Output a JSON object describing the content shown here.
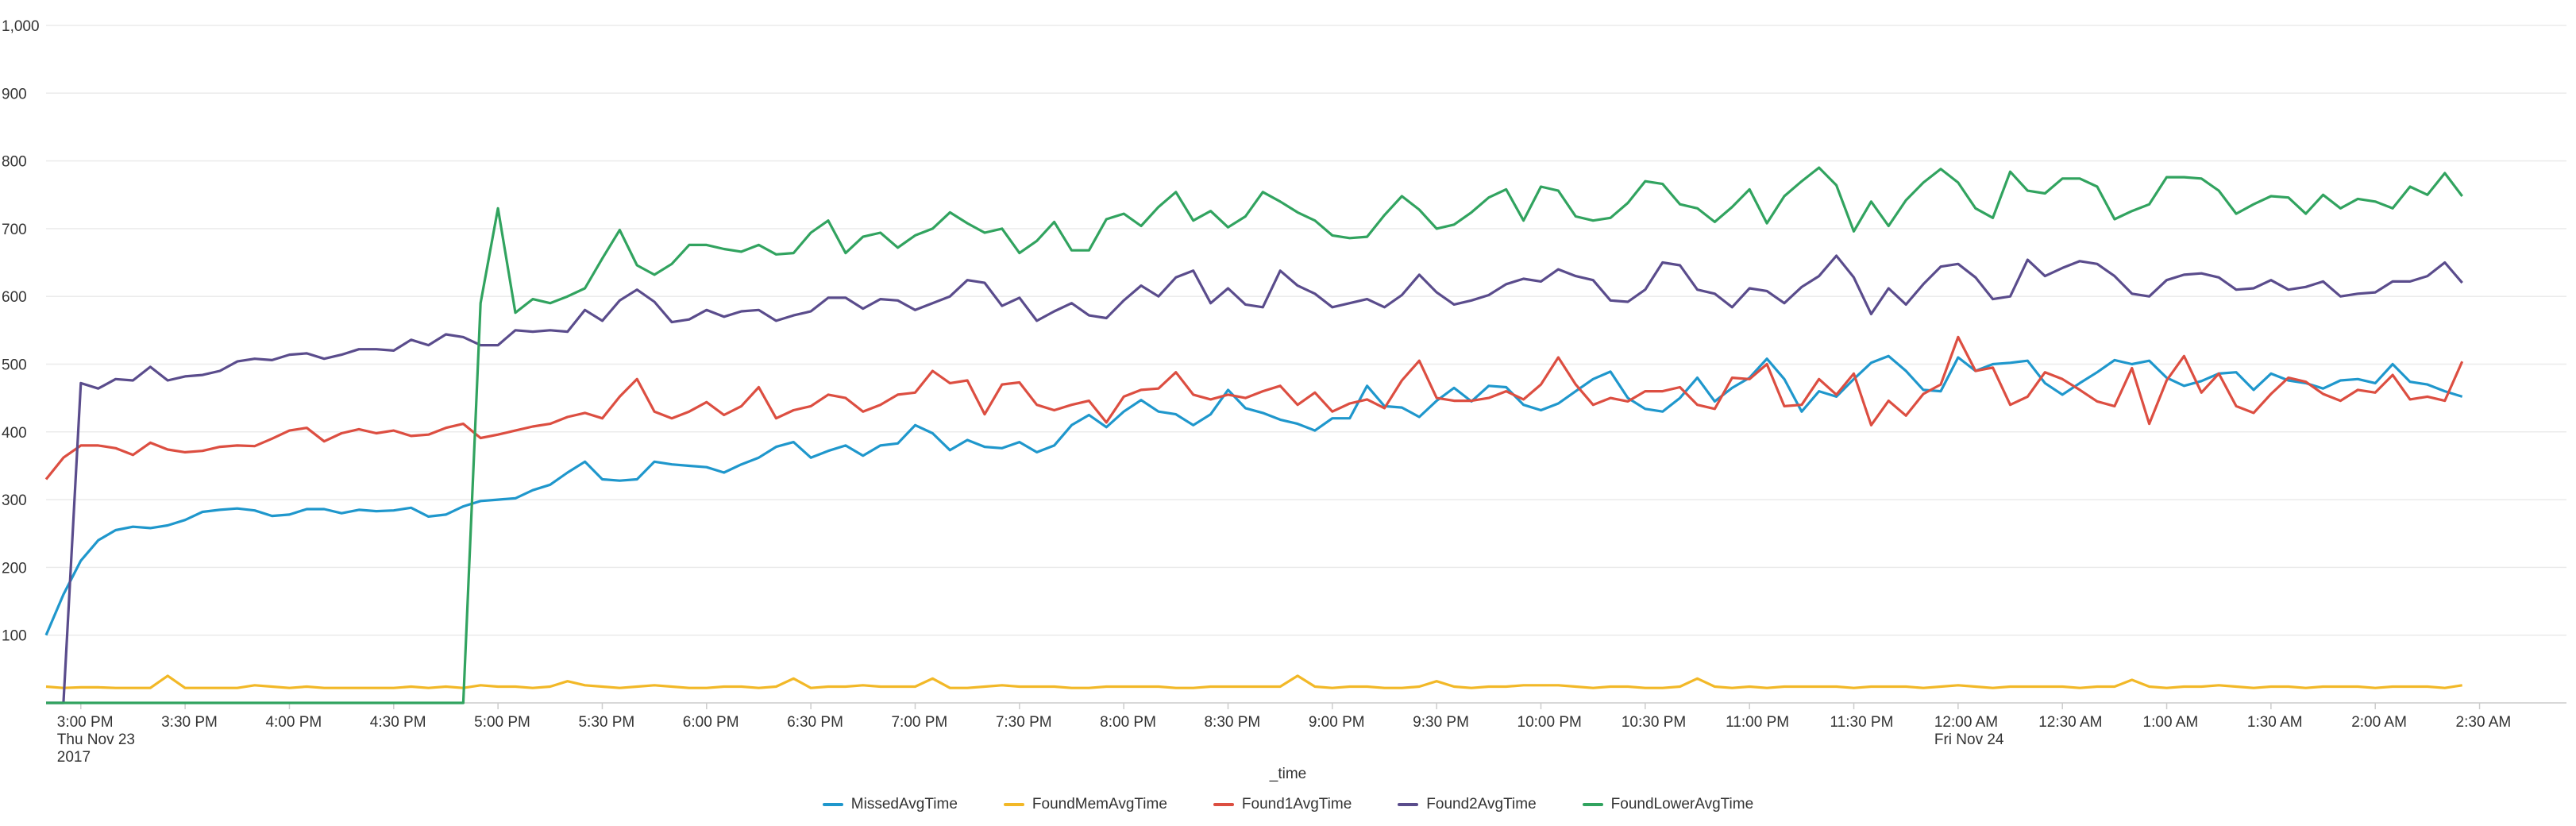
{
  "chart_data": {
    "type": "line",
    "title": "",
    "xlabel": "_time",
    "ylabel": "",
    "ylim": [
      0,
      1000
    ],
    "yticks": [
      "100",
      "200",
      "300",
      "400",
      "500",
      "600",
      "700",
      "800",
      "900",
      "1,000"
    ],
    "ytick_values": [
      100,
      200,
      300,
      400,
      500,
      600,
      700,
      800,
      900,
      1000
    ],
    "x_start": "2017-11-23 14:50",
    "x_end": "2017-11-24 02:55",
    "x_step_minutes": 5,
    "xticks": [
      {
        "time": "2017-11-23 15:00",
        "lines": [
          "3:00 PM",
          "Thu Nov 23",
          "2017"
        ]
      },
      {
        "time": "2017-11-23 15:30",
        "lines": [
          "3:30 PM"
        ]
      },
      {
        "time": "2017-11-23 16:00",
        "lines": [
          "4:00 PM"
        ]
      },
      {
        "time": "2017-11-23 16:30",
        "lines": [
          "4:30 PM"
        ]
      },
      {
        "time": "2017-11-23 17:00",
        "lines": [
          "5:00 PM"
        ]
      },
      {
        "time": "2017-11-23 17:30",
        "lines": [
          "5:30 PM"
        ]
      },
      {
        "time": "2017-11-23 18:00",
        "lines": [
          "6:00 PM"
        ]
      },
      {
        "time": "2017-11-23 18:30",
        "lines": [
          "6:30 PM"
        ]
      },
      {
        "time": "2017-11-23 19:00",
        "lines": [
          "7:00 PM"
        ]
      },
      {
        "time": "2017-11-23 19:30",
        "lines": [
          "7:30 PM"
        ]
      },
      {
        "time": "2017-11-23 20:00",
        "lines": [
          "8:00 PM"
        ]
      },
      {
        "time": "2017-11-23 20:30",
        "lines": [
          "8:30 PM"
        ]
      },
      {
        "time": "2017-11-23 21:00",
        "lines": [
          "9:00 PM"
        ]
      },
      {
        "time": "2017-11-23 21:30",
        "lines": [
          "9:30 PM"
        ]
      },
      {
        "time": "2017-11-23 22:00",
        "lines": [
          "10:00 PM"
        ]
      },
      {
        "time": "2017-11-23 22:30",
        "lines": [
          "10:30 PM"
        ]
      },
      {
        "time": "2017-11-23 23:00",
        "lines": [
          "11:00 PM"
        ]
      },
      {
        "time": "2017-11-23 23:30",
        "lines": [
          "11:30 PM"
        ]
      },
      {
        "time": "2017-11-24 00:00",
        "lines": [
          "12:00 AM",
          "Fri Nov 24"
        ]
      },
      {
        "time": "2017-11-24 00:30",
        "lines": [
          "12:30 AM"
        ]
      },
      {
        "time": "2017-11-24 01:00",
        "lines": [
          "1:00 AM"
        ]
      },
      {
        "time": "2017-11-24 01:30",
        "lines": [
          "1:30 AM"
        ]
      },
      {
        "time": "2017-11-24 02:00",
        "lines": [
          "2:00 AM"
        ]
      },
      {
        "time": "2017-11-24 02:30",
        "lines": [
          "2:30 AM"
        ]
      }
    ],
    "grid": "horizontal",
    "legend_position": "bottom",
    "series": [
      {
        "name": "MissedAvgTime",
        "color": "#1f97cc",
        "values": [
          100,
          160,
          210,
          240,
          255,
          260,
          258,
          262,
          270,
          282,
          285,
          287,
          284,
          276,
          278,
          286,
          286,
          280,
          285,
          283,
          284,
          288,
          275,
          278,
          290,
          298,
          300,
          302,
          314,
          322,
          340,
          356,
          330,
          328,
          330,
          356,
          352,
          350,
          348,
          340,
          352,
          362,
          378,
          385,
          362,
          372,
          380,
          365,
          380,
          383,
          410,
          398,
          373,
          388,
          378,
          376,
          385,
          370,
          380,
          410,
          425,
          407,
          430,
          447,
          430,
          426,
          410,
          426,
          462,
          435,
          428,
          418,
          412,
          402,
          420,
          420,
          468,
          438,
          436,
          422,
          446,
          465,
          445,
          468,
          466,
          440,
          432,
          442,
          460,
          478,
          489,
          450,
          434,
          430,
          450,
          480,
          445,
          465,
          480,
          508,
          478,
          430,
          460,
          452,
          478,
          502,
          512,
          490,
          462,
          460,
          510,
          490,
          500,
          502,
          505,
          472,
          455,
          472,
          488,
          506,
          500,
          505,
          480,
          468,
          475,
          486,
          488,
          462,
          486,
          476,
          472,
          464,
          476,
          478,
          472,
          500,
          474,
          470,
          460,
          452
        ]
      },
      {
        "name": "FoundMemAvgTime",
        "color": "#f2b827",
        "values": [
          24,
          22,
          23,
          23,
          22,
          22,
          22,
          40,
          22,
          22,
          22,
          22,
          26,
          24,
          22,
          24,
          22,
          22,
          22,
          22,
          22,
          24,
          22,
          24,
          22,
          26,
          24,
          24,
          22,
          24,
          32,
          26,
          24,
          22,
          24,
          26,
          24,
          22,
          22,
          24,
          24,
          22,
          24,
          36,
          22,
          24,
          24,
          26,
          24,
          24,
          24,
          36,
          22,
          22,
          24,
          26,
          24,
          24,
          24,
          22,
          22,
          24,
          24,
          24,
          24,
          22,
          22,
          24,
          24,
          24,
          24,
          24,
          40,
          24,
          22,
          24,
          24,
          22,
          22,
          24,
          32,
          24,
          22,
          24,
          24,
          26,
          26,
          26,
          24,
          22,
          24,
          24,
          22,
          22,
          24,
          36,
          24,
          22,
          24,
          22,
          24,
          24,
          24,
          24,
          22,
          24,
          24,
          24,
          22,
          24,
          26,
          24,
          22,
          24,
          24,
          24,
          24,
          22,
          24,
          24,
          34,
          24,
          22,
          24,
          24,
          26,
          24,
          22,
          24,
          24,
          22,
          24,
          24,
          24,
          22,
          24,
          24,
          24,
          22,
          26
        ]
      },
      {
        "name": "Found1AvgTime",
        "color": "#dc4e41",
        "values": [
          330,
          362,
          380,
          380,
          376,
          366,
          384,
          374,
          370,
          372,
          378,
          380,
          379,
          390,
          402,
          406,
          386,
          398,
          404,
          398,
          402,
          394,
          396,
          406,
          412,
          391,
          396,
          402,
          408,
          412,
          422,
          428,
          420,
          452,
          478,
          430,
          420,
          430,
          444,
          425,
          438,
          466,
          420,
          432,
          438,
          455,
          450,
          430,
          440,
          455,
          458,
          490,
          472,
          476,
          426,
          470,
          473,
          440,
          432,
          440,
          446,
          414,
          452,
          462,
          464,
          488,
          455,
          448,
          455,
          450,
          460,
          468,
          440,
          458,
          430,
          442,
          448,
          435,
          476,
          505,
          450,
          446,
          446,
          450,
          460,
          448,
          470,
          510,
          470,
          440,
          450,
          445,
          460,
          460,
          466,
          440,
          434,
          480,
          478,
          500,
          438,
          440,
          478,
          455,
          486,
          410,
          446,
          424,
          456,
          470,
          540,
          490,
          495,
          440,
          452,
          488,
          478,
          462,
          445,
          438,
          494,
          412,
          476,
          512,
          458,
          486,
          438,
          428,
          456,
          480,
          474,
          456,
          446,
          462,
          458,
          484,
          448,
          452,
          446,
          504
        ]
      },
      {
        "name": "Found2AvgTime",
        "color": "#5a4c8c",
        "values": [
          0,
          0,
          472,
          464,
          478,
          476,
          496,
          476,
          482,
          484,
          490,
          504,
          508,
          506,
          514,
          516,
          508,
          514,
          522,
          522,
          520,
          536,
          528,
          544,
          540,
          528,
          528,
          550,
          548,
          550,
          548,
          580,
          564,
          594,
          610,
          592,
          562,
          566,
          580,
          570,
          578,
          580,
          564,
          572,
          578,
          598,
          598,
          582,
          596,
          594,
          580,
          590,
          600,
          624,
          620,
          586,
          598,
          564,
          578,
          590,
          572,
          568,
          594,
          616,
          600,
          628,
          638,
          590,
          612,
          588,
          584,
          638,
          616,
          604,
          584,
          590,
          596,
          584,
          602,
          632,
          606,
          588,
          594,
          602,
          618,
          626,
          622,
          640,
          630,
          624,
          594,
          592,
          610,
          650,
          646,
          610,
          604,
          584,
          612,
          608,
          590,
          614,
          630,
          660,
          628,
          574,
          612,
          588,
          618,
          644,
          648,
          628,
          596,
          600,
          654,
          630,
          642,
          652,
          648,
          630,
          604,
          600,
          624,
          632,
          634,
          628,
          610,
          612,
          624,
          610,
          614,
          622,
          600,
          604,
          606,
          622,
          622,
          630,
          650,
          620
        ]
      },
      {
        "name": "FoundLowerAvgTime",
        "color": "#31a35f",
        "values": [
          0,
          0,
          0,
          0,
          0,
          0,
          0,
          0,
          0,
          0,
          0,
          0,
          0,
          0,
          0,
          0,
          0,
          0,
          0,
          0,
          0,
          0,
          0,
          0,
          0,
          590,
          730,
          576,
          596,
          590,
          600,
          612,
          656,
          698,
          646,
          632,
          648,
          676,
          676,
          670,
          666,
          676,
          662,
          664,
          694,
          712,
          664,
          688,
          694,
          672,
          690,
          700,
          724,
          708,
          694,
          700,
          664,
          682,
          710,
          668,
          668,
          714,
          722,
          704,
          732,
          754,
          712,
          726,
          702,
          718,
          754,
          740,
          724,
          712,
          690,
          686,
          688,
          720,
          748,
          728,
          700,
          706,
          724,
          746,
          758,
          712,
          762,
          756,
          718,
          712,
          716,
          738,
          770,
          766,
          736,
          730,
          710,
          732,
          758,
          708,
          748,
          770,
          790,
          764,
          696,
          740,
          704,
          742,
          768,
          788,
          768,
          730,
          716,
          784,
          756,
          752,
          774,
          774,
          762,
          714,
          726,
          736,
          776,
          776,
          774,
          756,
          722,
          736,
          748,
          746,
          722,
          750,
          730,
          744,
          740,
          730,
          762,
          750,
          782,
          748
        ]
      }
    ]
  }
}
